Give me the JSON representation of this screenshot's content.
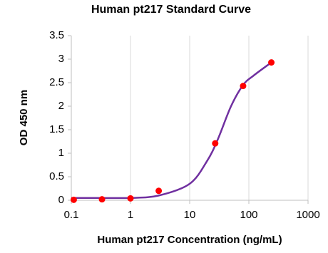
{
  "chart_data": {
    "type": "scatter",
    "title": "Human pt217 Standard Curve",
    "x_label": "Human pt217 Concentration (ng/mL)",
    "y_label": "OD 450 nm",
    "x_scale": "log",
    "xlim": [
      0.1,
      1000
    ],
    "xticks": [
      0.1,
      1,
      10,
      100,
      1000
    ],
    "ylim": [
      0,
      3.5
    ],
    "yticks": [
      0,
      0.5,
      1,
      1.5,
      2,
      2.5,
      3,
      3.5
    ],
    "grid": "x",
    "series": [
      {
        "color": "#ff0000",
        "mode": "markers",
        "x": [
          0.11,
          0.33,
          1,
          3,
          27,
          80,
          240
        ],
        "values": [
          0.01,
          0.02,
          0.04,
          0.2,
          1.21,
          2.43,
          2.93
        ]
      },
      {
        "color": "#7030a0",
        "mode": "line",
        "x": [
          0.1,
          0.3,
          1,
          3,
          10,
          20,
          30,
          50,
          80,
          120,
          240
        ],
        "values": [
          0.05,
          0.05,
          0.05,
          0.1,
          0.35,
          0.85,
          1.3,
          2.0,
          2.45,
          2.65,
          2.93
        ]
      }
    ]
  }
}
